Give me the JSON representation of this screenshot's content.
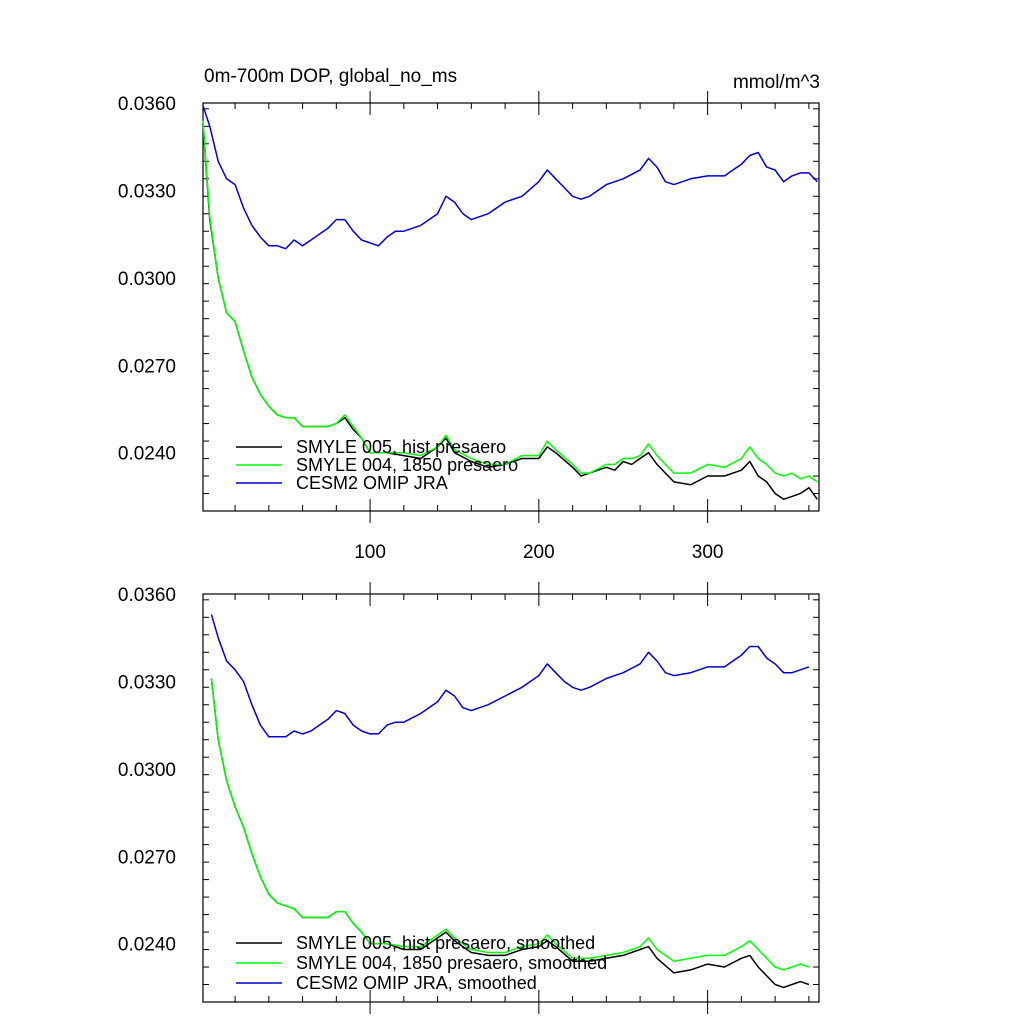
{
  "chart_data": [
    {
      "type": "line",
      "title": "0m-700m DOP, global_no_ms",
      "units": "mmol/m^3",
      "xlabel": "",
      "ylabel": "",
      "xlim": [
        1,
        366
      ],
      "ylim": [
        0.022,
        0.036
      ],
      "yticks": [
        "0.0360",
        "0.0330",
        "0.0300",
        "0.0270",
        "0.0240"
      ],
      "xticks": [
        "100",
        "200",
        "300"
      ],
      "legend_position": "bottom-left",
      "grid": false,
      "series": [
        {
          "name": "SMYLE 005, hist presaero",
          "color": "#000000",
          "x": [
            1,
            5,
            10,
            15,
            20,
            25,
            30,
            35,
            40,
            45,
            50,
            55,
            60,
            65,
            70,
            75,
            80,
            85,
            90,
            95,
            100,
            110,
            120,
            130,
            140,
            145,
            150,
            160,
            170,
            180,
            190,
            200,
            205,
            210,
            220,
            225,
            230,
            240,
            245,
            250,
            255,
            260,
            265,
            270,
            275,
            280,
            290,
            300,
            310,
            320,
            325,
            330,
            335,
            340,
            345,
            350,
            355,
            360,
            365
          ],
          "y": [
            0.0353,
            0.032,
            0.03,
            0.0288,
            0.0285,
            0.0275,
            0.0266,
            0.026,
            0.0256,
            0.0253,
            0.0252,
            0.0252,
            0.0249,
            0.0249,
            0.0249,
            0.0249,
            0.025,
            0.0252,
            0.0248,
            0.0245,
            0.024,
            0.024,
            0.0239,
            0.0238,
            0.0242,
            0.0245,
            0.024,
            0.0237,
            0.0235,
            0.0236,
            0.0238,
            0.0238,
            0.0242,
            0.024,
            0.0235,
            0.0232,
            0.0233,
            0.0235,
            0.0234,
            0.0237,
            0.0236,
            0.0238,
            0.024,
            0.0236,
            0.0233,
            0.023,
            0.0229,
            0.0232,
            0.0232,
            0.0234,
            0.0237,
            0.0232,
            0.023,
            0.0226,
            0.0224,
            0.0225,
            0.0226,
            0.0228,
            0.0224
          ]
        },
        {
          "name": "SMYLE 004, 1850 presaero",
          "color": "#00ff00",
          "x": [
            1,
            5,
            10,
            15,
            20,
            25,
            30,
            35,
            40,
            45,
            50,
            55,
            60,
            65,
            70,
            75,
            80,
            85,
            90,
            95,
            100,
            110,
            120,
            130,
            140,
            145,
            150,
            160,
            170,
            180,
            190,
            200,
            205,
            210,
            220,
            225,
            230,
            240,
            245,
            250,
            255,
            260,
            265,
            270,
            275,
            280,
            290,
            300,
            310,
            320,
            325,
            330,
            335,
            340,
            345,
            350,
            355,
            360,
            365
          ],
          "y": [
            0.0354,
            0.0321,
            0.03,
            0.0288,
            0.0285,
            0.0275,
            0.0266,
            0.026,
            0.0256,
            0.0253,
            0.0252,
            0.0252,
            0.0249,
            0.0249,
            0.0249,
            0.0249,
            0.025,
            0.0253,
            0.0249,
            0.0245,
            0.024,
            0.024,
            0.024,
            0.0239,
            0.0242,
            0.0246,
            0.0241,
            0.0238,
            0.0236,
            0.0236,
            0.0239,
            0.0239,
            0.0244,
            0.0241,
            0.0236,
            0.0233,
            0.0233,
            0.0236,
            0.0236,
            0.0238,
            0.0238,
            0.0239,
            0.0243,
            0.0239,
            0.0236,
            0.0233,
            0.0233,
            0.0236,
            0.0235,
            0.0238,
            0.0242,
            0.0238,
            0.0236,
            0.0233,
            0.0232,
            0.0233,
            0.0231,
            0.0232,
            0.023
          ]
        },
        {
          "name": "CESM2 OMIP JRA",
          "color": "#0000cc",
          "x": [
            1,
            5,
            10,
            15,
            20,
            25,
            30,
            35,
            40,
            45,
            50,
            55,
            60,
            65,
            70,
            75,
            80,
            85,
            90,
            95,
            100,
            105,
            110,
            115,
            120,
            130,
            140,
            145,
            150,
            155,
            160,
            170,
            180,
            190,
            200,
            205,
            210,
            215,
            220,
            225,
            230,
            240,
            245,
            250,
            260,
            265,
            270,
            275,
            280,
            290,
            300,
            310,
            315,
            320,
            325,
            330,
            335,
            340,
            345,
            350,
            355,
            360,
            365
          ],
          "y": [
            0.0359,
            0.0352,
            0.034,
            0.0334,
            0.0332,
            0.0324,
            0.0318,
            0.0314,
            0.0311,
            0.0311,
            0.031,
            0.0313,
            0.0311,
            0.0313,
            0.0315,
            0.0317,
            0.032,
            0.032,
            0.0316,
            0.0313,
            0.0312,
            0.0311,
            0.0314,
            0.0316,
            0.0316,
            0.0318,
            0.0322,
            0.0328,
            0.0326,
            0.0322,
            0.032,
            0.0322,
            0.0326,
            0.0328,
            0.0333,
            0.0337,
            0.0334,
            0.0331,
            0.0328,
            0.0327,
            0.0328,
            0.0332,
            0.0333,
            0.0334,
            0.0337,
            0.0341,
            0.0338,
            0.0333,
            0.0332,
            0.0334,
            0.0335,
            0.0335,
            0.0337,
            0.0339,
            0.0342,
            0.0343,
            0.0338,
            0.0337,
            0.0333,
            0.0335,
            0.0336,
            0.0336,
            0.0333
          ]
        }
      ]
    },
    {
      "type": "line",
      "title": "",
      "xlabel": "",
      "ylabel": "",
      "xlim": [
        1,
        366
      ],
      "ylim": [
        0.022,
        0.036
      ],
      "yticks": [
        "0.0360",
        "0.0330",
        "0.0300",
        "0.0270",
        "0.0240"
      ],
      "xticks": [],
      "legend_position": "bottom-left",
      "grid": false,
      "series": [
        {
          "name": "SMYLE 005, hist presaero, smoothed",
          "color": "#000000",
          "x": [
            6,
            10,
            15,
            20,
            25,
            30,
            35,
            40,
            45,
            50,
            55,
            60,
            65,
            70,
            75,
            80,
            85,
            90,
            95,
            100,
            110,
            120,
            130,
            140,
            145,
            150,
            160,
            170,
            180,
            190,
            200,
            205,
            210,
            220,
            230,
            240,
            250,
            260,
            265,
            270,
            280,
            290,
            300,
            310,
            320,
            325,
            330,
            335,
            340,
            345,
            350,
            355,
            360
          ],
          "y": [
            0.0331,
            0.031,
            0.0296,
            0.0287,
            0.028,
            0.0271,
            0.0263,
            0.0257,
            0.0254,
            0.0253,
            0.0252,
            0.0249,
            0.0249,
            0.0249,
            0.0249,
            0.0251,
            0.0251,
            0.0247,
            0.0244,
            0.024,
            0.024,
            0.0238,
            0.0238,
            0.0242,
            0.0244,
            0.0241,
            0.0237,
            0.0236,
            0.0236,
            0.0238,
            0.0239,
            0.0241,
            0.0239,
            0.0234,
            0.0234,
            0.0235,
            0.0236,
            0.0238,
            0.0239,
            0.0235,
            0.023,
            0.0231,
            0.0233,
            0.0232,
            0.0235,
            0.0236,
            0.0232,
            0.0229,
            0.0226,
            0.0225,
            0.0226,
            0.0227,
            0.0226
          ]
        },
        {
          "name": "SMYLE 004, 1850 presaero, smoothed",
          "color": "#00ff00",
          "x": [
            6,
            10,
            15,
            20,
            25,
            30,
            35,
            40,
            45,
            50,
            55,
            60,
            65,
            70,
            75,
            80,
            85,
            90,
            95,
            100,
            110,
            120,
            130,
            140,
            145,
            150,
            160,
            170,
            180,
            190,
            200,
            205,
            210,
            220,
            230,
            240,
            250,
            260,
            265,
            270,
            280,
            290,
            300,
            310,
            320,
            325,
            330,
            335,
            340,
            345,
            350,
            355,
            360
          ],
          "y": [
            0.0331,
            0.031,
            0.0296,
            0.0287,
            0.028,
            0.0271,
            0.0263,
            0.0257,
            0.0254,
            0.0253,
            0.0252,
            0.0249,
            0.0249,
            0.0249,
            0.0249,
            0.0251,
            0.0251,
            0.0247,
            0.0244,
            0.024,
            0.024,
            0.0239,
            0.0239,
            0.0243,
            0.0245,
            0.0242,
            0.0238,
            0.0237,
            0.0237,
            0.0239,
            0.024,
            0.0243,
            0.024,
            0.0235,
            0.0235,
            0.0236,
            0.0237,
            0.0239,
            0.0242,
            0.0238,
            0.0234,
            0.0235,
            0.0236,
            0.0236,
            0.0239,
            0.0241,
            0.0238,
            0.0235,
            0.0232,
            0.0231,
            0.0232,
            0.0233,
            0.0232
          ]
        },
        {
          "name": "CESM2 OMIP JRA, smoothed",
          "color": "#0000cc",
          "x": [
            6,
            10,
            15,
            20,
            25,
            30,
            35,
            40,
            45,
            50,
            55,
            60,
            65,
            70,
            75,
            80,
            85,
            90,
            95,
            100,
            105,
            110,
            115,
            120,
            130,
            140,
            145,
            150,
            155,
            160,
            170,
            180,
            190,
            200,
            205,
            210,
            215,
            220,
            225,
            230,
            240,
            245,
            250,
            260,
            265,
            270,
            275,
            280,
            290,
            300,
            310,
            315,
            320,
            325,
            330,
            335,
            340,
            345,
            350,
            355,
            360
          ],
          "y": [
            0.0353,
            0.0345,
            0.0337,
            0.0334,
            0.033,
            0.0322,
            0.0315,
            0.0311,
            0.0311,
            0.0311,
            0.0313,
            0.0312,
            0.0313,
            0.0315,
            0.0317,
            0.032,
            0.0319,
            0.0315,
            0.0313,
            0.0312,
            0.0312,
            0.0315,
            0.0316,
            0.0316,
            0.0319,
            0.0323,
            0.0327,
            0.0325,
            0.0321,
            0.032,
            0.0322,
            0.0325,
            0.0328,
            0.0332,
            0.0336,
            0.0333,
            0.033,
            0.0328,
            0.0327,
            0.0328,
            0.0331,
            0.0332,
            0.0333,
            0.0336,
            0.034,
            0.0337,
            0.0333,
            0.0332,
            0.0333,
            0.0335,
            0.0335,
            0.0337,
            0.0339,
            0.0342,
            0.0342,
            0.0338,
            0.0336,
            0.0333,
            0.0333,
            0.0334,
            0.0335
          ]
        }
      ]
    }
  ]
}
